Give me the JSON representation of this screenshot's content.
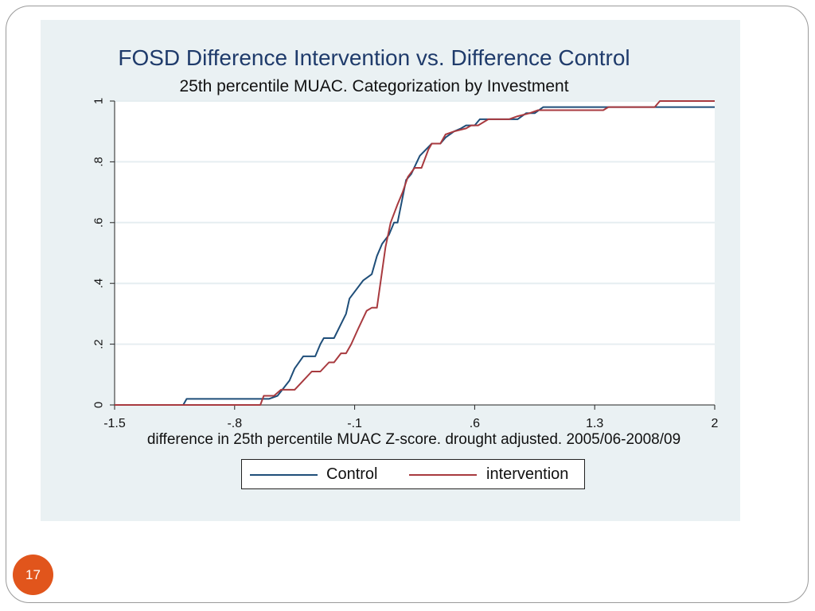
{
  "page": {
    "number": "17"
  },
  "colors": {
    "control": "#1f4e79",
    "intervention": "#a83a3f",
    "panel": "#eaf1f3",
    "badge": "#e1551c"
  },
  "chart_data": {
    "type": "line",
    "title": "FOSD Difference Intervention vs. Difference Control",
    "subtitle": "25th percentile MUAC. Categorization by Investment",
    "xlabel": "difference in 25th percentile MUAC Z-score. drought adjusted. 2005/06-2008/09",
    "ylabel": "",
    "xlim": [
      -1.5,
      2
    ],
    "ylim": [
      0,
      1
    ],
    "x_ticks": [
      -1.5,
      -0.8,
      -0.1,
      0.6,
      1.3,
      2
    ],
    "x_tick_labels": [
      "-1.5",
      "-.8",
      "-.1",
      ".6",
      "1.3",
      "2"
    ],
    "y_ticks": [
      0,
      0.2,
      0.4,
      0.6,
      0.8,
      1
    ],
    "y_tick_labels": [
      "0",
      ".2",
      ".4",
      ".6",
      ".8",
      "1"
    ],
    "grid": true,
    "legend": {
      "position": "bottom",
      "entries": [
        "Control",
        "intervention"
      ]
    },
    "series": [
      {
        "name": "Control",
        "points": [
          [
            -1.5,
            0
          ],
          [
            -1.1,
            0
          ],
          [
            -1.08,
            0.02
          ],
          [
            -0.6,
            0.02
          ],
          [
            -0.55,
            0.03
          ],
          [
            -0.48,
            0.08
          ],
          [
            -0.45,
            0.12
          ],
          [
            -0.4,
            0.16
          ],
          [
            -0.33,
            0.16
          ],
          [
            -0.3,
            0.2
          ],
          [
            -0.28,
            0.22
          ],
          [
            -0.22,
            0.22
          ],
          [
            -0.15,
            0.3
          ],
          [
            -0.13,
            0.35
          ],
          [
            -0.05,
            0.41
          ],
          [
            0.0,
            0.43
          ],
          [
            0.03,
            0.49
          ],
          [
            0.06,
            0.53
          ],
          [
            0.1,
            0.56
          ],
          [
            0.13,
            0.6
          ],
          [
            0.15,
            0.6
          ],
          [
            0.2,
            0.74
          ],
          [
            0.23,
            0.76
          ],
          [
            0.28,
            0.82
          ],
          [
            0.35,
            0.86
          ],
          [
            0.4,
            0.86
          ],
          [
            0.43,
            0.88
          ],
          [
            0.48,
            0.9
          ],
          [
            0.52,
            0.91
          ],
          [
            0.55,
            0.92
          ],
          [
            0.6,
            0.92
          ],
          [
            0.63,
            0.94
          ],
          [
            0.75,
            0.94
          ],
          [
            0.78,
            0.94
          ],
          [
            0.85,
            0.94
          ],
          [
            0.9,
            0.96
          ],
          [
            0.95,
            0.96
          ],
          [
            1.0,
            0.98
          ],
          [
            1.5,
            0.98
          ],
          [
            2.0,
            0.98
          ]
        ]
      },
      {
        "name": "intervention",
        "points": [
          [
            -1.5,
            0
          ],
          [
            -0.65,
            0
          ],
          [
            -0.63,
            0.03
          ],
          [
            -0.57,
            0.03
          ],
          [
            -0.53,
            0.05
          ],
          [
            -0.45,
            0.05
          ],
          [
            -0.4,
            0.08
          ],
          [
            -0.35,
            0.11
          ],
          [
            -0.3,
            0.11
          ],
          [
            -0.25,
            0.14
          ],
          [
            -0.22,
            0.14
          ],
          [
            -0.18,
            0.17
          ],
          [
            -0.15,
            0.17
          ],
          [
            -0.12,
            0.2
          ],
          [
            -0.08,
            0.25
          ],
          [
            -0.03,
            0.31
          ],
          [
            0.0,
            0.32
          ],
          [
            0.03,
            0.32
          ],
          [
            0.06,
            0.44
          ],
          [
            0.08,
            0.52
          ],
          [
            0.11,
            0.6
          ],
          [
            0.15,
            0.66
          ],
          [
            0.18,
            0.7
          ],
          [
            0.21,
            0.75
          ],
          [
            0.25,
            0.78
          ],
          [
            0.29,
            0.78
          ],
          [
            0.33,
            0.84
          ],
          [
            0.35,
            0.86
          ],
          [
            0.4,
            0.86
          ],
          [
            0.43,
            0.89
          ],
          [
            0.48,
            0.9
          ],
          [
            0.55,
            0.91
          ],
          [
            0.58,
            0.92
          ],
          [
            0.62,
            0.92
          ],
          [
            0.68,
            0.94
          ],
          [
            0.8,
            0.94
          ],
          [
            0.85,
            0.95
          ],
          [
            0.92,
            0.96
          ],
          [
            0.97,
            0.97
          ],
          [
            1.35,
            0.97
          ],
          [
            1.38,
            0.98
          ],
          [
            1.65,
            0.98
          ],
          [
            1.68,
            1.0
          ],
          [
            2.0,
            1.0
          ]
        ]
      }
    ]
  }
}
